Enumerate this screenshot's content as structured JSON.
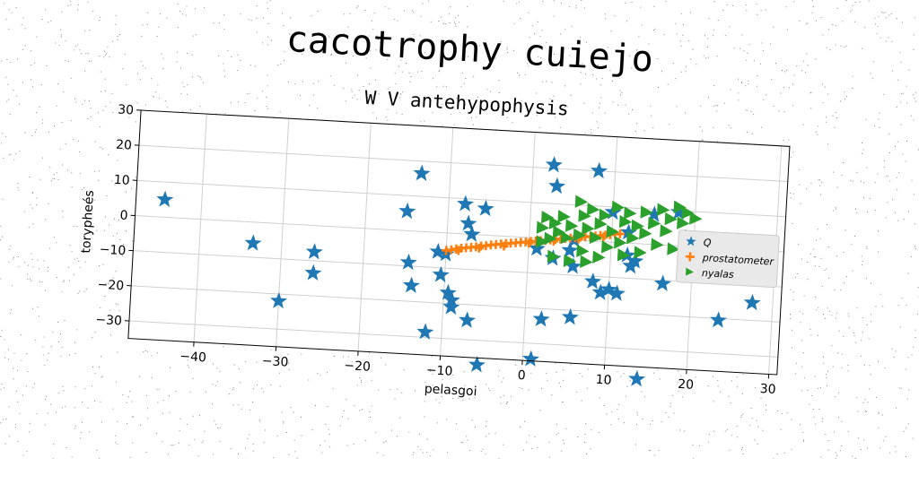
{
  "chart_data": {
    "type": "scatter",
    "title": "cacotrophy cuiejo",
    "subtitle": "W V antehypophysis",
    "xlabel": "pelasgoi",
    "ylabel": "torypheés",
    "xlim": [
      -48,
      31
    ],
    "ylim": [
      -35,
      30
    ],
    "xticks": [
      -40,
      -30,
      -20,
      -10,
      0,
      10,
      20,
      30
    ],
    "yticks": [
      -30,
      -20,
      -10,
      0,
      10,
      20,
      30
    ],
    "grid": true,
    "legend_position": "right",
    "series": [
      {
        "name": "Q",
        "marker": "star",
        "color": "#1f77b4",
        "points": [
          [
            -44.5,
            5
          ],
          [
            -33.5,
            -6
          ],
          [
            -30,
            -22
          ],
          [
            -26,
            -7.5
          ],
          [
            -26,
            -13.5
          ],
          [
            -15,
            5.5
          ],
          [
            -14.5,
            -9
          ],
          [
            -14,
            -15.5
          ],
          [
            -13.5,
            16.5
          ],
          [
            -12,
            -28.5
          ],
          [
            -11,
            -5.5
          ],
          [
            -10.5,
            -12
          ],
          [
            -10,
            -6
          ],
          [
            -9.5,
            -17
          ],
          [
            -9,
            -21
          ],
          [
            -9,
            -19
          ],
          [
            -8,
            8.5
          ],
          [
            -7.5,
            3
          ],
          [
            -7,
            0
          ],
          [
            -7,
            -24.5
          ],
          [
            -5.5,
            7.5
          ],
          [
            -5.5,
            -37
          ],
          [
            1,
            -3
          ],
          [
            1,
            -34.5
          ],
          [
            2,
            -23
          ],
          [
            2.5,
            21
          ],
          [
            3,
            15
          ],
          [
            3,
            -5.5
          ],
          [
            5,
            -3
          ],
          [
            5.5,
            0
          ],
          [
            5.5,
            -7.5
          ],
          [
            5.5,
            -22
          ],
          [
            8,
            20
          ],
          [
            8,
            -11.5
          ],
          [
            9,
            -14.5
          ],
          [
            10,
            8.5
          ],
          [
            10,
            -13.5
          ],
          [
            11,
            -14.5
          ],
          [
            12,
            3
          ],
          [
            12,
            -3.5
          ],
          [
            12.5,
            -6.5
          ],
          [
            13,
            -5
          ],
          [
            14,
            -38.5
          ],
          [
            15,
            8.5
          ],
          [
            16.5,
            -11
          ],
          [
            18,
            9.5
          ],
          [
            23.5,
            -20.5
          ],
          [
            27.5,
            -15
          ]
        ]
      },
      {
        "name": "prostatometer",
        "marker": "plus",
        "color": "#ff7f0e",
        "points": [
          [
            -10,
            -5
          ],
          [
            -9.4,
            -4.7
          ],
          [
            -8.8,
            -4.4
          ],
          [
            -8.2,
            -4.1
          ],
          [
            -7.6,
            -3.9
          ],
          [
            -7,
            -3.7
          ],
          [
            -6.4,
            -3.5
          ],
          [
            -5.8,
            -3.2
          ],
          [
            -5.2,
            -3
          ],
          [
            -4.6,
            -2.7
          ],
          [
            -4,
            -2.5
          ],
          [
            -3.4,
            -2.3
          ],
          [
            -2.8,
            -2.1
          ],
          [
            -2.2,
            -1.9
          ],
          [
            -1.6,
            -1.7
          ],
          [
            -1,
            -1.5
          ],
          [
            -0.4,
            -1.3
          ],
          [
            0.2,
            -1.1
          ],
          [
            0.8,
            -0.9
          ],
          [
            1.4,
            -0.7
          ],
          [
            2,
            -0.5
          ],
          [
            2.6,
            -0.3
          ],
          [
            3.2,
            -0.1
          ],
          [
            3.8,
            0.1
          ],
          [
            4.4,
            0.3
          ],
          [
            5,
            0.5
          ],
          [
            5.6,
            0.7
          ],
          [
            6.2,
            0.9
          ],
          [
            6.8,
            1.1
          ],
          [
            7.4,
            1.3
          ],
          [
            8,
            1.5
          ],
          [
            8.6,
            1.7
          ],
          [
            9.2,
            1.9
          ],
          [
            9.8,
            2.1
          ],
          [
            10.4,
            2.3
          ],
          [
            11,
            2.5
          ],
          [
            -8.5,
            -4.8
          ],
          [
            -6,
            -3.8
          ],
          [
            -3,
            -2.8
          ],
          [
            0,
            -1.6
          ],
          [
            3,
            -0.6
          ],
          [
            6,
            0.4
          ],
          [
            9,
            1.4
          ]
        ]
      },
      {
        "name": "nyalas",
        "marker": "triangle-right",
        "color": "#2ca02c",
        "points": [
          [
            1.5,
            3
          ],
          [
            1.5,
            -1
          ],
          [
            2,
            6
          ],
          [
            2.5,
            0
          ],
          [
            3,
            4.5
          ],
          [
            3,
            -5
          ],
          [
            3.5,
            2
          ],
          [
            4,
            6.5
          ],
          [
            4.5,
            0.5
          ],
          [
            5,
            4
          ],
          [
            5,
            -6
          ],
          [
            6,
            11
          ],
          [
            6,
            1.5
          ],
          [
            6.5,
            7
          ],
          [
            6.5,
            -3
          ],
          [
            7,
            3.5
          ],
          [
            7,
            -6
          ],
          [
            7.5,
            9
          ],
          [
            8,
            1
          ],
          [
            8.5,
            5
          ],
          [
            8.5,
            -4.5
          ],
          [
            9,
            7.5
          ],
          [
            9.5,
            -1.5
          ],
          [
            10,
            3
          ],
          [
            10.5,
            10
          ],
          [
            11,
            0
          ],
          [
            11.5,
            6
          ],
          [
            11.5,
            -3.5
          ],
          [
            12,
            8.5
          ],
          [
            12.5,
            1.5
          ],
          [
            13,
            5
          ],
          [
            13.5,
            -2.5
          ],
          [
            14,
            9
          ],
          [
            14,
            3
          ],
          [
            15,
            6
          ],
          [
            15.5,
            0
          ],
          [
            16,
            10
          ],
          [
            16.5,
            4
          ],
          [
            17,
            7.5
          ],
          [
            17.5,
            -1
          ],
          [
            18,
            11
          ],
          [
            18.5,
            6.5
          ],
          [
            19,
            9.5
          ],
          [
            19.5,
            3
          ],
          [
            20,
            8
          ]
        ]
      }
    ]
  }
}
